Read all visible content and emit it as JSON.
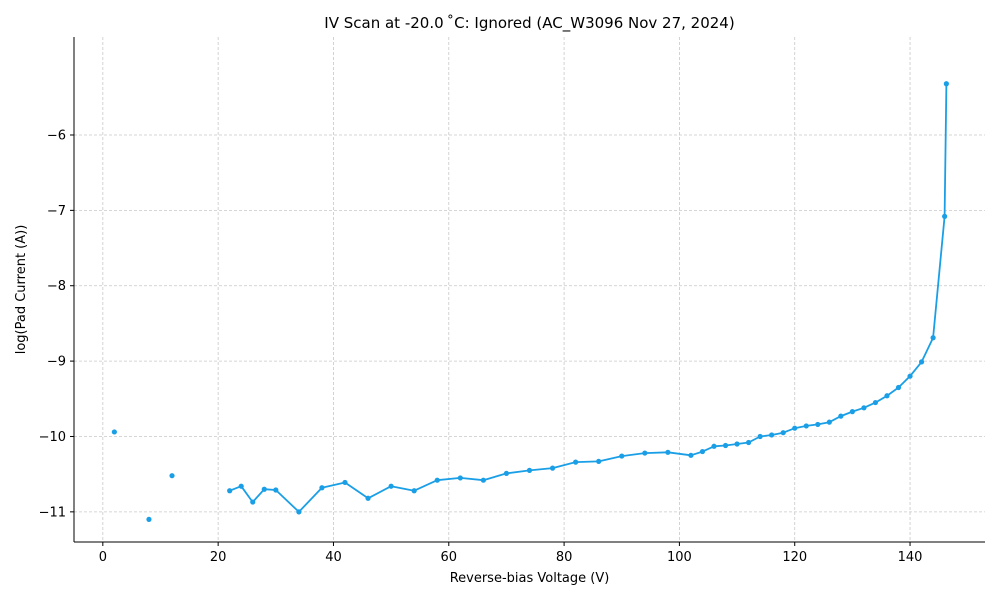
{
  "chart_data": {
    "type": "line",
    "title": "IV Scan at -20.0 ˚C: Ignored (AC_W3096 Nov 27, 2024)",
    "xlabel": "Reverse-bias Voltage (V)",
    "ylabel": "log(Pad Current (A))",
    "xlim": [
      -5,
      153
    ],
    "ylim": [
      -11.4,
      -4.7
    ],
    "x_ticks": [
      0,
      20,
      40,
      60,
      80,
      100,
      120,
      140
    ],
    "y_ticks": [
      -11,
      -10,
      -9,
      -8,
      -7,
      -6
    ],
    "grid": true,
    "color": "#1a9fe6",
    "isolated_points": [
      {
        "x": 2,
        "y": -9.94
      },
      {
        "x": 8,
        "y": -11.1
      },
      {
        "x": 12,
        "y": -10.52
      }
    ],
    "series": [
      {
        "x": [
          22,
          24,
          26,
          28,
          30,
          34,
          38,
          42,
          46,
          50,
          54,
          58,
          62,
          66,
          70,
          74,
          78,
          82,
          86,
          90,
          94,
          98,
          102,
          104,
          106,
          108,
          110,
          112,
          114,
          116,
          118,
          120,
          122,
          124,
          126,
          128,
          130,
          132,
          134,
          136,
          138,
          140,
          142,
          144,
          146,
          146.3
        ],
        "y": [
          -10.72,
          -10.66,
          -10.87,
          -10.7,
          -10.71,
          -11.0,
          -10.68,
          -10.61,
          -10.82,
          -10.66,
          -10.72,
          -10.58,
          -10.55,
          -10.58,
          -10.49,
          -10.45,
          -10.42,
          -10.34,
          -10.33,
          -10.26,
          -10.22,
          -10.21,
          -10.25,
          -10.2,
          -10.13,
          -10.12,
          -10.1,
          -10.08,
          -10.0,
          -9.98,
          -9.95,
          -9.89,
          -9.86,
          -9.84,
          -9.81,
          -9.73,
          -9.67,
          -9.62,
          -9.55,
          -9.46,
          -9.35,
          -9.2,
          -9.01,
          -8.69,
          -7.08,
          -5.32
        ]
      }
    ]
  }
}
